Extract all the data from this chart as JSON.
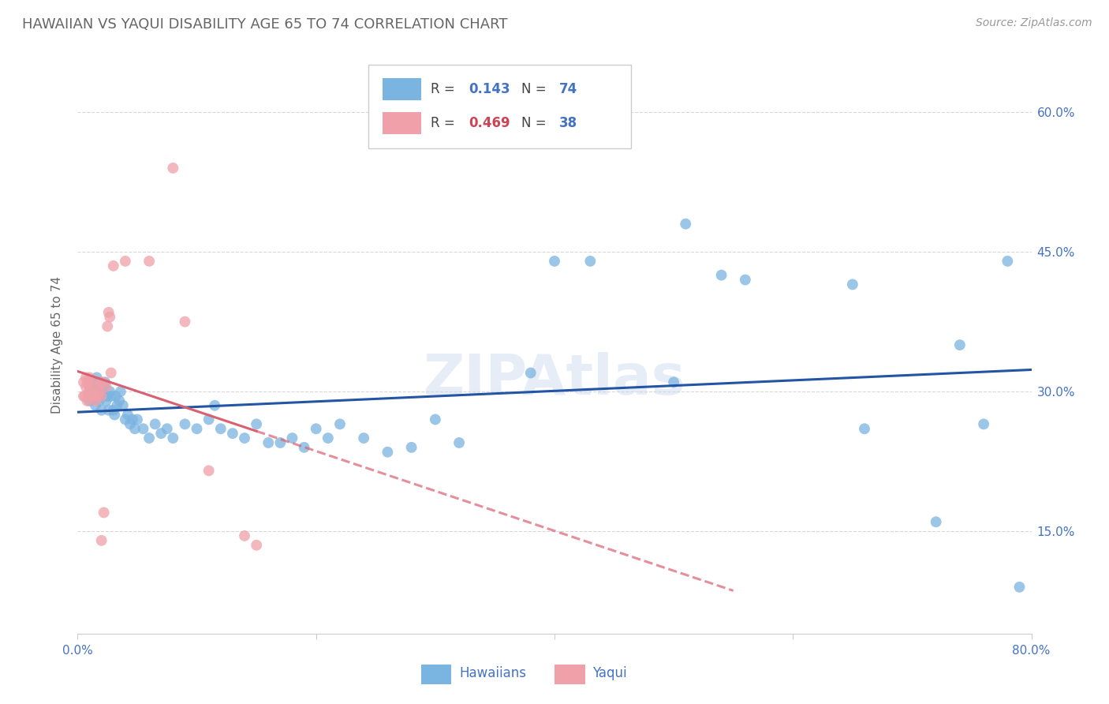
{
  "title": "HAWAIIAN VS YAQUI DISABILITY AGE 65 TO 74 CORRELATION CHART",
  "source": "Source: ZipAtlas.com",
  "ylabel_text": "Disability Age 65 to 74",
  "watermark": "ZIPAtlas",
  "x_min": 0.0,
  "x_max": 0.8,
  "y_min": 0.04,
  "y_max": 0.66,
  "x_ticks": [
    0.0,
    0.2,
    0.4,
    0.6,
    0.8
  ],
  "y_ticks": [
    0.15,
    0.3,
    0.45,
    0.6
  ],
  "hawaiian_R": 0.143,
  "hawaiian_N": 74,
  "yaqui_R": 0.469,
  "yaqui_N": 38,
  "hawaiian_color": "#7ab4e0",
  "yaqui_color": "#f0a0a8",
  "trendline_hawaiian_color": "#2455a4",
  "trendline_yaqui_color": "#d96070",
  "background_color": "#ffffff",
  "grid_color": "#d8d8d8",
  "axis_label_color": "#4472c4",
  "title_color": "#666666",
  "source_color": "#999999",
  "legend_R_color_hawaiian": "#4472c4",
  "legend_N_color_hawaiian": "#4472c4",
  "legend_R_color_yaqui": "#cc4455",
  "legend_N_color_yaqui": "#4472c4",
  "hawaiian_x": [
    0.01,
    0.01,
    0.012,
    0.013,
    0.014,
    0.015,
    0.015,
    0.016,
    0.016,
    0.018,
    0.018,
    0.019,
    0.02,
    0.021,
    0.022,
    0.023,
    0.024,
    0.025,
    0.026,
    0.027,
    0.028,
    0.03,
    0.031,
    0.032,
    0.033,
    0.035,
    0.036,
    0.038,
    0.04,
    0.042,
    0.044,
    0.046,
    0.048,
    0.05,
    0.055,
    0.06,
    0.065,
    0.07,
    0.075,
    0.08,
    0.09,
    0.1,
    0.11,
    0.115,
    0.12,
    0.13,
    0.14,
    0.15,
    0.16,
    0.17,
    0.18,
    0.19,
    0.2,
    0.21,
    0.22,
    0.24,
    0.26,
    0.28,
    0.3,
    0.32,
    0.38,
    0.4,
    0.43,
    0.5,
    0.51,
    0.54,
    0.56,
    0.65,
    0.66,
    0.72,
    0.74,
    0.76,
    0.78,
    0.79
  ],
  "hawaiian_y": [
    0.29,
    0.305,
    0.31,
    0.295,
    0.3,
    0.285,
    0.3,
    0.295,
    0.315,
    0.29,
    0.31,
    0.3,
    0.28,
    0.295,
    0.305,
    0.31,
    0.29,
    0.295,
    0.28,
    0.3,
    0.295,
    0.28,
    0.275,
    0.295,
    0.285,
    0.29,
    0.3,
    0.285,
    0.27,
    0.275,
    0.265,
    0.27,
    0.26,
    0.27,
    0.26,
    0.25,
    0.265,
    0.255,
    0.26,
    0.25,
    0.265,
    0.26,
    0.27,
    0.285,
    0.26,
    0.255,
    0.25,
    0.265,
    0.245,
    0.245,
    0.25,
    0.24,
    0.26,
    0.25,
    0.265,
    0.25,
    0.235,
    0.24,
    0.27,
    0.245,
    0.32,
    0.44,
    0.44,
    0.31,
    0.48,
    0.425,
    0.42,
    0.415,
    0.26,
    0.16,
    0.35,
    0.265,
    0.44,
    0.09
  ],
  "yaqui_x": [
    0.005,
    0.005,
    0.006,
    0.007,
    0.007,
    0.008,
    0.008,
    0.009,
    0.009,
    0.01,
    0.01,
    0.011,
    0.011,
    0.012,
    0.013,
    0.014,
    0.015,
    0.016,
    0.017,
    0.018,
    0.019,
    0.02,
    0.02,
    0.021,
    0.022,
    0.024,
    0.025,
    0.026,
    0.027,
    0.028,
    0.03,
    0.04,
    0.06,
    0.08,
    0.09,
    0.11,
    0.14,
    0.15
  ],
  "yaqui_y": [
    0.295,
    0.31,
    0.295,
    0.305,
    0.315,
    0.29,
    0.31,
    0.295,
    0.31,
    0.3,
    0.315,
    0.295,
    0.31,
    0.3,
    0.295,
    0.295,
    0.29,
    0.305,
    0.295,
    0.3,
    0.31,
    0.295,
    0.14,
    0.31,
    0.17,
    0.305,
    0.37,
    0.385,
    0.38,
    0.32,
    0.435,
    0.44,
    0.44,
    0.54,
    0.375,
    0.215,
    0.145,
    0.135
  ],
  "dot_size": 100,
  "dot_alpha": 0.75,
  "trendline_lw": 2.2,
  "font_size_title": 13,
  "font_size_axis": 11,
  "font_size_tick": 11,
  "font_size_legend": 12,
  "font_size_source": 10
}
